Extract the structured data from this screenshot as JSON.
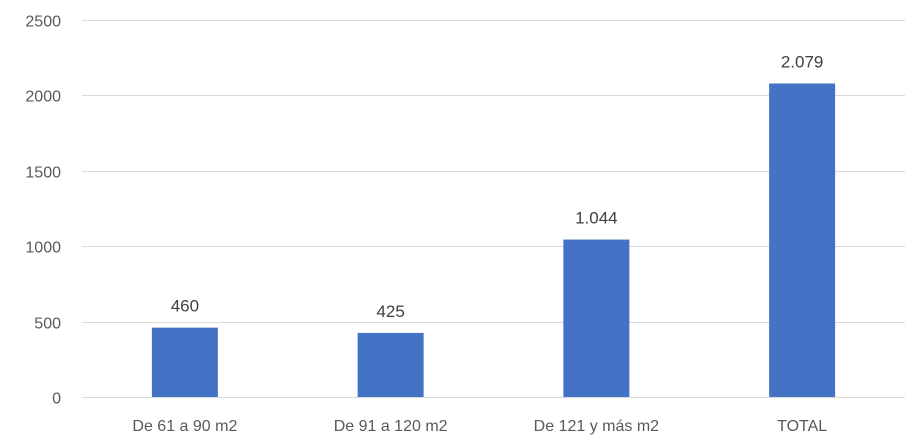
{
  "chart_data": {
    "type": "bar",
    "categories": [
      "De 61 a 90 m2",
      "De 91 a 120 m2",
      "De 121 y más m2",
      "TOTAL"
    ],
    "values": [
      460,
      425,
      1044,
      2079
    ],
    "data_labels": [
      "460",
      "425",
      "1.044",
      "2.079"
    ],
    "yticks": [
      "0",
      "500",
      "1000",
      "1500",
      "2000",
      "2500"
    ],
    "ylim": [
      0,
      2500
    ],
    "title": "",
    "xlabel": "",
    "ylabel": "",
    "grid": true,
    "legend": "none",
    "bar_color": "#4472c4"
  }
}
